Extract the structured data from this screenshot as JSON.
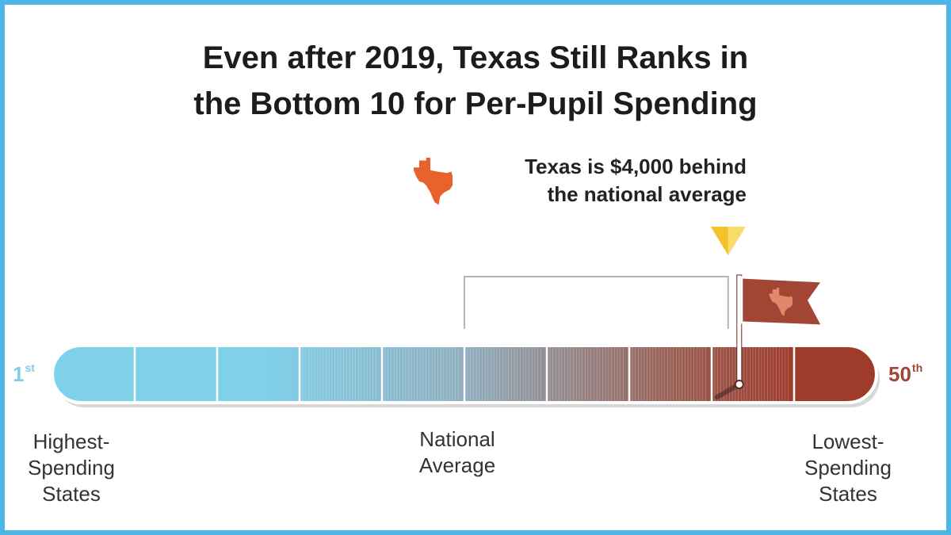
{
  "title": {
    "line1": "Even after 2019, Texas Still Ranks in",
    "line2": "the Bottom 10 for Per-Pupil Spending"
  },
  "callout": {
    "line1": "Texas is $4,000 behind",
    "line2": "the national average"
  },
  "colors": {
    "frame": "#4db6e4",
    "high_end": "#7fd1ea",
    "low_end": "#9f3b2c",
    "texas_orange": "#e8632c",
    "marker_yellow": "#f5c22a",
    "flag": "#a24535"
  },
  "chart_data": {
    "type": "rank-scale",
    "title": "Even after 2019, Texas Still Ranks in the Bottom 10 for Per-Pupil Spending",
    "rank_range": [
      1,
      50
    ],
    "segments": 10,
    "start_rank": {
      "number": "1",
      "suffix": "st"
    },
    "end_rank": {
      "number": "50",
      "suffix": "th"
    },
    "national_average_rank": 25,
    "texas_rank": 43,
    "texas_gap": "$4,000",
    "axis_labels": {
      "start": [
        "Highest-",
        "Spending",
        "States"
      ],
      "middle": [
        "National",
        "Average"
      ],
      "end": [
        "Lowest-",
        "Spending",
        "States"
      ]
    }
  }
}
